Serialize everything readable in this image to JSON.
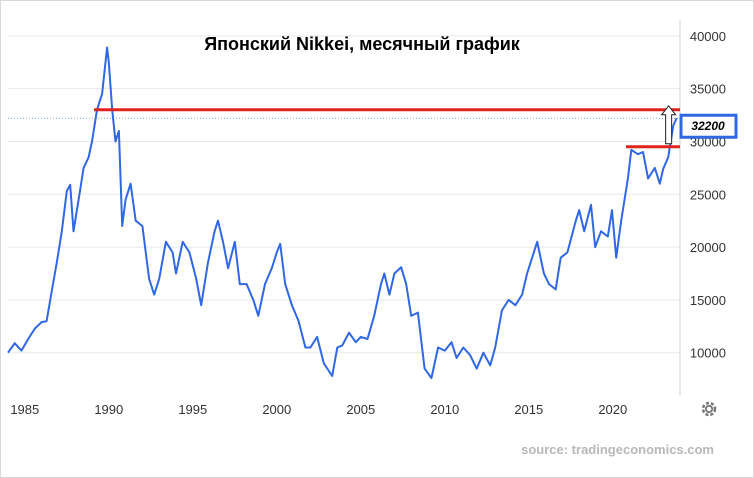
{
  "chart_data": {
    "type": "line",
    "title": "Японский Nikkei, месячный график",
    "xlabel": "",
    "ylabel": "",
    "xlim": [
      1984,
      2024.0
    ],
    "ylim": [
      6000,
      41500
    ],
    "x_ticks": [
      "1985",
      "1990",
      "1995",
      "2000",
      "2005",
      "2010",
      "2015",
      "2020"
    ],
    "y_ticks": [
      "10000",
      "15000",
      "20000",
      "25000",
      "30000",
      "35000",
      "40000"
    ],
    "grid": "horizontal",
    "series": [
      {
        "color": "#2f67e5",
        "points": [
          [
            1984.0,
            10000
          ],
          [
            1984.4,
            10900
          ],
          [
            1984.8,
            10200
          ],
          [
            1985.2,
            11300
          ],
          [
            1985.6,
            12300
          ],
          [
            1986.0,
            12900
          ],
          [
            1986.3,
            13000
          ],
          [
            1986.6,
            15800
          ],
          [
            1986.9,
            18500
          ],
          [
            1987.2,
            21500
          ],
          [
            1987.5,
            25300
          ],
          [
            1987.7,
            25900
          ],
          [
            1987.9,
            21500
          ],
          [
            1988.2,
            24500
          ],
          [
            1988.5,
            27500
          ],
          [
            1988.8,
            28500
          ],
          [
            1989.0,
            30000
          ],
          [
            1989.3,
            33000
          ],
          [
            1989.6,
            34500
          ],
          [
            1989.9,
            38900
          ],
          [
            1990.0,
            37500
          ],
          [
            1990.2,
            33000
          ],
          [
            1990.4,
            30000
          ],
          [
            1990.6,
            31000
          ],
          [
            1990.8,
            22000
          ],
          [
            1991.0,
            24500
          ],
          [
            1991.3,
            26000
          ],
          [
            1991.6,
            22500
          ],
          [
            1992.0,
            22000
          ],
          [
            1992.4,
            17000
          ],
          [
            1992.7,
            15500
          ],
          [
            1993.0,
            17000
          ],
          [
            1993.4,
            20500
          ],
          [
            1993.8,
            19500
          ],
          [
            1994.0,
            17500
          ],
          [
            1994.4,
            20500
          ],
          [
            1994.8,
            19500
          ],
          [
            1995.2,
            17000
          ],
          [
            1995.5,
            14500
          ],
          [
            1995.9,
            18500
          ],
          [
            1996.3,
            21500
          ],
          [
            1996.5,
            22500
          ],
          [
            1996.8,
            20500
          ],
          [
            1997.1,
            18000
          ],
          [
            1997.5,
            20500
          ],
          [
            1997.8,
            16500
          ],
          [
            1998.2,
            16500
          ],
          [
            1998.6,
            15000
          ],
          [
            1998.9,
            13500
          ],
          [
            1999.3,
            16500
          ],
          [
            1999.7,
            18000
          ],
          [
            2000.0,
            19500
          ],
          [
            2000.2,
            20300
          ],
          [
            2000.5,
            16500
          ],
          [
            2000.9,
            14500
          ],
          [
            2001.3,
            13000
          ],
          [
            2001.7,
            10500
          ],
          [
            2002.0,
            10500
          ],
          [
            2002.4,
            11500
          ],
          [
            2002.8,
            9000
          ],
          [
            2003.3,
            7800
          ],
          [
            2003.6,
            10500
          ],
          [
            2003.9,
            10700
          ],
          [
            2004.3,
            11900
          ],
          [
            2004.7,
            11000
          ],
          [
            2005.0,
            11500
          ],
          [
            2005.4,
            11300
          ],
          [
            2005.8,
            13500
          ],
          [
            2006.2,
            16500
          ],
          [
            2006.4,
            17500
          ],
          [
            2006.7,
            15500
          ],
          [
            2007.0,
            17500
          ],
          [
            2007.4,
            18100
          ],
          [
            2007.7,
            16500
          ],
          [
            2008.0,
            13500
          ],
          [
            2008.4,
            13800
          ],
          [
            2008.8,
            8500
          ],
          [
            2009.2,
            7600
          ],
          [
            2009.6,
            10500
          ],
          [
            2010.0,
            10200
          ],
          [
            2010.4,
            11000
          ],
          [
            2010.7,
            9500
          ],
          [
            2011.1,
            10500
          ],
          [
            2011.5,
            9800
          ],
          [
            2011.9,
            8500
          ],
          [
            2012.3,
            10000
          ],
          [
            2012.7,
            8800
          ],
          [
            2013.0,
            10500
          ],
          [
            2013.4,
            14000
          ],
          [
            2013.8,
            15000
          ],
          [
            2014.2,
            14500
          ],
          [
            2014.6,
            15500
          ],
          [
            2014.9,
            17500
          ],
          [
            2015.3,
            19500
          ],
          [
            2015.5,
            20500
          ],
          [
            2015.9,
            17500
          ],
          [
            2016.2,
            16500
          ],
          [
            2016.6,
            16000
          ],
          [
            2016.9,
            19000
          ],
          [
            2017.3,
            19500
          ],
          [
            2017.8,
            22500
          ],
          [
            2018.0,
            23500
          ],
          [
            2018.3,
            21500
          ],
          [
            2018.7,
            24000
          ],
          [
            2018.95,
            20000
          ],
          [
            2019.3,
            21500
          ],
          [
            2019.7,
            21000
          ],
          [
            2019.95,
            23500
          ],
          [
            2020.2,
            19000
          ],
          [
            2020.5,
            22500
          ],
          [
            2020.9,
            26500
          ],
          [
            2021.1,
            29200
          ],
          [
            2021.5,
            28800
          ],
          [
            2021.8,
            29000
          ],
          [
            2022.1,
            26500
          ],
          [
            2022.5,
            27500
          ],
          [
            2022.8,
            26000
          ],
          [
            2023.0,
            27400
          ],
          [
            2023.3,
            28500
          ],
          [
            2023.6,
            31500
          ],
          [
            2023.8,
            32200
          ]
        ]
      }
    ],
    "annotations": {
      "resistance_level": 33000,
      "support_level": 29500,
      "price_marker": "32200"
    }
  },
  "source_text": "source: tradingeconomics.com",
  "settings_icon": "gear-icon"
}
